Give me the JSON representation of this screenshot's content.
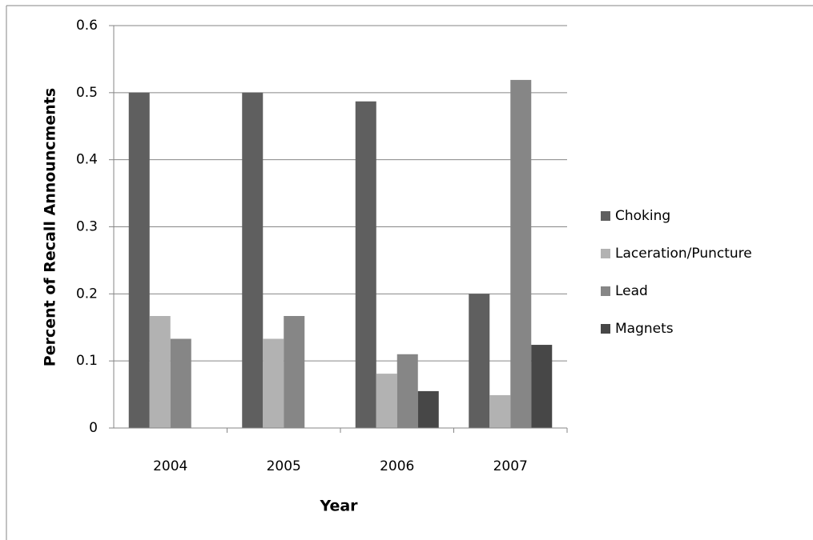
{
  "chart_data": {
    "type": "bar",
    "x_label": "Year",
    "y_label": "Percent of Recall Announcments",
    "categories": [
      "2004",
      "2005",
      "2006",
      "2007"
    ],
    "series": [
      {
        "name": "Choking",
        "color": "#5f5f5f",
        "values": [
          0.5,
          0.5,
          0.487,
          0.2
        ]
      },
      {
        "name": "Laceration/Puncture",
        "color": "#b2b2b2",
        "values": [
          0.167,
          0.133,
          0.081,
          0.049
        ]
      },
      {
        "name": "Lead",
        "color": "#868686",
        "values": [
          0.133,
          0.167,
          0.11,
          0.519
        ]
      },
      {
        "name": "Magnets",
        "color": "#474747",
        "values": [
          0,
          0,
          0.055,
          0.124
        ]
      }
    ],
    "ylim": [
      0,
      0.6
    ],
    "yticks": [
      0,
      0.1,
      0.2,
      0.3,
      0.4,
      0.5,
      0.6
    ],
    "grid": true,
    "legend": "right"
  }
}
